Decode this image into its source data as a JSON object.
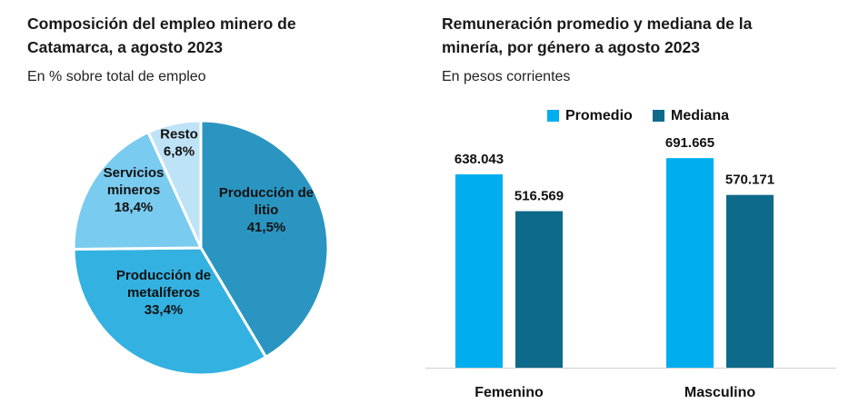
{
  "chart_data": [
    {
      "type": "pie",
      "title_line1": "Composición del empleo minero de",
      "title_line2": "Catamarca, a agosto 2023",
      "subtitle": "En % sobre total de empleo",
      "unit": "%",
      "slices": [
        {
          "name_lines": [
            "Producción de",
            "litio"
          ],
          "value": 41.5,
          "label": "41,5%",
          "color": "#2a95c0"
        },
        {
          "name_lines": [
            "Producción de",
            "metalíferos"
          ],
          "value": 33.4,
          "label": "33,4%",
          "color": "#33b1e0"
        },
        {
          "name_lines": [
            "Servicios",
            "mineros"
          ],
          "value": 18.4,
          "label": "18,4%",
          "color": "#79cbef"
        },
        {
          "name_lines": [
            "Resto"
          ],
          "value": 6.8,
          "label": "6,8%",
          "color": "#bfe3f6"
        }
      ]
    },
    {
      "type": "bar",
      "title_line1": "Remuneración promedio y mediana de la",
      "title_line2": "minería, por género a agosto 2023",
      "subtitle": "En pesos corrientes",
      "categories": [
        "Femenino",
        "Masculino"
      ],
      "series": [
        {
          "name": "Promedio",
          "color": "#00aeef",
          "values": [
            638043,
            691665
          ],
          "labels": [
            "638.043",
            "691.665"
          ]
        },
        {
          "name": "Mediana",
          "color": "#0e6a8a",
          "values": [
            516569,
            570171
          ],
          "labels": [
            "516.569",
            "570.171"
          ]
        }
      ],
      "ylim": [
        0,
        800000
      ],
      "legend": "top-center"
    }
  ]
}
